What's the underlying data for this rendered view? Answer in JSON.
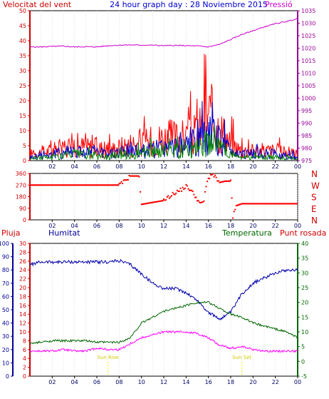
{
  "title": "24 hour graph day : 28 Noviembre 2015",
  "time_ticks": [
    "02",
    "04",
    "06",
    "08",
    "10",
    "12",
    "14",
    "16",
    "18",
    "20",
    "22",
    "00"
  ],
  "colors": {
    "wind": "#ff0000",
    "gust_alt": "#0000cc",
    "wind_green": "#008000",
    "pressure": "#cc00cc",
    "direction": "#ff0000",
    "humidity": "#0000aa",
    "temperature": "#006600",
    "dewpoint": "#ff00ff",
    "sun": "#ffff00"
  },
  "chart_data": [
    {
      "type": "line",
      "title": "",
      "left_label": "Velocitat del vent",
      "right_label": "Pressió",
      "y_left_ticks": [
        "0",
        "5",
        "10",
        "15",
        "20",
        "25",
        "30",
        "35",
        "40",
        "45",
        "50"
      ],
      "y_left_range": [
        0,
        50
      ],
      "y_right_ticks": [
        "975",
        "980",
        "985",
        "990",
        "995",
        "1000",
        "1005",
        "1010",
        "1015",
        "1020",
        "1025",
        "1030",
        "1035"
      ],
      "y_right_range": [
        975,
        1035
      ],
      "x_hours": [
        0,
        1,
        2,
        3,
        4,
        5,
        6,
        7,
        8,
        9,
        10,
        11,
        12,
        13,
        14,
        15,
        16,
        17,
        18,
        19,
        20,
        21,
        22,
        23,
        24
      ],
      "series": [
        {
          "values": [
            2,
            2.5,
            3,
            4,
            5,
            4,
            4,
            3,
            4,
            5,
            5,
            6,
            7,
            7,
            7,
            8,
            14,
            10,
            5,
            3,
            3,
            3,
            3,
            2.5,
            2
          ]
        },
        {
          "values": [
            1,
            1.5,
            2,
            2.5,
            3,
            2.5,
            2.5,
            2,
            2.5,
            3,
            3,
            3.5,
            4,
            4,
            4,
            5,
            8,
            6,
            3,
            2,
            2,
            2,
            2,
            1.5,
            1
          ]
        },
        {
          "values": [
            0.5,
            1,
            1,
            1.5,
            2,
            1.5,
            1.5,
            1,
            1.5,
            2,
            2,
            2.5,
            3,
            3,
            3,
            3.5,
            6,
            4,
            2,
            1,
            1,
            1,
            1,
            1,
            0.5
          ]
        },
        {
          "axis": "right",
          "values": [
            1020.5,
            1020.5,
            1020.7,
            1020.8,
            1020.5,
            1020.6,
            1020.5,
            1021,
            1021.2,
            1021.3,
            1021.2,
            1021.2,
            1021,
            1021.1,
            1021,
            1020.9,
            1020.5,
            1021.5,
            1023.5,
            1025.5,
            1027,
            1028.5,
            1029.8,
            1030.7,
            1031.8
          ]
        }
      ]
    },
    {
      "type": "scatter",
      "title": "",
      "y_ticks": [
        "360",
        "270",
        "180",
        "90",
        "0"
      ],
      "y_range": [
        0,
        360
      ],
      "compass_labels": [
        "N",
        "W",
        "S",
        "E",
        "N"
      ],
      "x_hours": [
        0,
        1,
        2,
        3,
        4,
        5,
        6,
        7,
        8,
        8.5,
        9,
        9.8,
        10,
        11,
        12,
        12.5,
        13,
        13.5,
        14,
        14.3,
        14.7,
        15,
        15.3,
        15.6,
        15.8,
        16,
        16.3,
        16.6,
        17,
        17.5,
        18,
        18.2,
        18.5,
        19,
        20,
        21,
        22,
        23,
        24
      ],
      "values": [
        270,
        270,
        270,
        270,
        270,
        270,
        270,
        270,
        270,
        300,
        340,
        340,
        120,
        135,
        150,
        180,
        210,
        230,
        260,
        240,
        200,
        160,
        120,
        150,
        260,
        320,
        360,
        330,
        290,
        300,
        300,
        20,
        110,
        125,
        125,
        125,
        125,
        125,
        125
      ]
    },
    {
      "type": "line",
      "title": "",
      "labels": {
        "rain": "Pluja",
        "humidity": "Humitat",
        "temperature": "Temperatura",
        "dewpoint": "Punt rosada"
      },
      "y_rain_ticks": [
        "0",
        "2",
        "4",
        "6",
        "8",
        "10",
        "12",
        "14",
        "16",
        "18",
        "20",
        "22",
        "24",
        "26",
        "28",
        "30"
      ],
      "y_rain_range": [
        0,
        30
      ],
      "y_humidity_ticks": [
        "0",
        "10",
        "20",
        "30",
        "40",
        "50",
        "60",
        "70",
        "80",
        "90",
        "100"
      ],
      "y_humidity_range": [
        0,
        100
      ],
      "y_temp_ticks": [
        "-5",
        "0",
        "5",
        "10",
        "15",
        "20",
        "25",
        "30",
        "35",
        "40"
      ],
      "y_temp_range": [
        -5,
        40
      ],
      "x_hours": [
        0,
        1,
        2,
        3,
        4,
        5,
        6,
        7,
        8,
        9,
        10,
        11,
        12,
        13,
        14,
        15,
        16,
        17,
        18,
        19,
        20,
        21,
        22,
        23,
        24
      ],
      "series": [
        {
          "name": "Humitat",
          "values": [
            84,
            86,
            86,
            86,
            86,
            86,
            86,
            86,
            87,
            84,
            77,
            70,
            66,
            66,
            63,
            57,
            48,
            43,
            48,
            62,
            70,
            74,
            78,
            80,
            80
          ]
        },
        {
          "name": "Temperatura",
          "values": [
            6,
            6.5,
            7,
            7,
            7,
            7,
            6.5,
            6.5,
            6.5,
            8,
            13,
            15,
            17,
            18,
            19,
            20,
            20,
            18,
            16,
            15,
            13,
            12,
            11,
            10,
            8
          ]
        },
        {
          "name": "Punt rosada",
          "values": [
            3.5,
            3.5,
            3.5,
            4,
            3.5,
            3.5,
            4.5,
            4,
            4,
            6,
            8,
            9,
            10,
            10,
            10,
            9.5,
            8,
            5.5,
            4.5,
            5,
            4,
            3.5,
            3.5,
            3.5,
            3.5
          ]
        }
      ],
      "sun": {
        "rise_label": "Sun Rise",
        "set_label": "Sun Set",
        "rise_hour": 7,
        "set_hour": 19
      }
    }
  ]
}
